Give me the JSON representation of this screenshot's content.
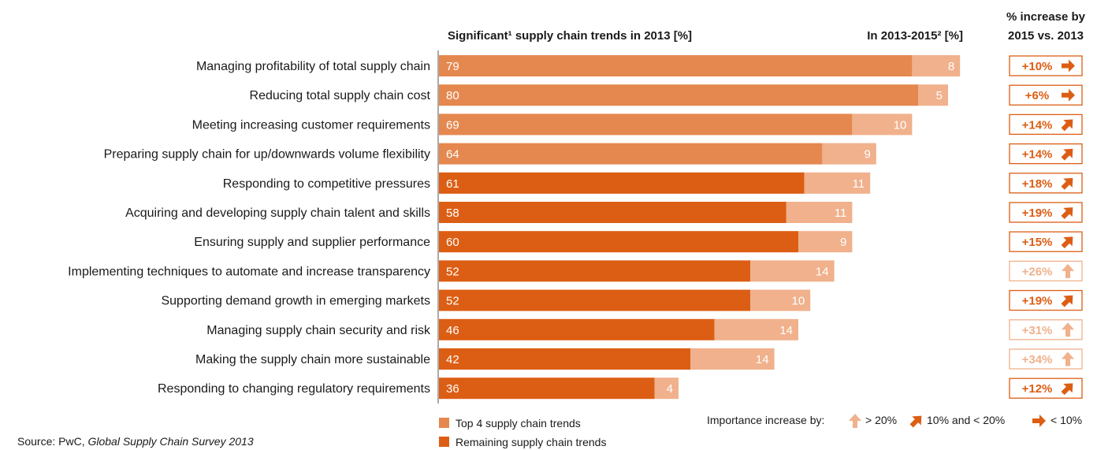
{
  "chart_data": {
    "type": "bar",
    "title": "Significant¹ supply chain trends in 2013 [%]",
    "increase_header": "In 2013-2015² [%]",
    "pct_header_line1": "% increase by",
    "pct_header_line2": "2015 vs. 2013",
    "categories": [
      "Managing profitability of total supply chain",
      "Reducing total supply chain cost",
      "Meeting increasing customer requirements",
      "Preparing supply chain for up/downwards volume flexibility",
      "Responding to competitive pressures",
      "Acquiring and developing supply chain talent and skills",
      "Ensuring supply and supplier performance",
      "Implementing techniques to automate and increase transparency",
      "Supporting demand growth in emerging markets",
      "Managing supply chain security and risk",
      "Making the supply chain more sustainable",
      "Responding to changing regulatory requirements"
    ],
    "series": [
      {
        "name": "Top 4 supply chain trends / Remaining supply chain trends",
        "values": [
          79,
          80,
          69,
          64,
          61,
          58,
          60,
          52,
          52,
          46,
          42,
          36
        ]
      },
      {
        "name": "In 2013-2015",
        "values": [
          8,
          5,
          10,
          9,
          11,
          11,
          9,
          14,
          10,
          14,
          14,
          4
        ]
      }
    ],
    "top4": [
      true,
      true,
      true,
      true,
      false,
      false,
      false,
      false,
      false,
      false,
      false,
      false
    ],
    "pct_increase": [
      "+10%",
      "+6%",
      "+14%",
      "+14%",
      "+18%",
      "+19%",
      "+15%",
      "+26%",
      "+19%",
      "+31%",
      "+34%",
      "+12%"
    ],
    "pct_arrow": [
      "right",
      "right",
      "diag",
      "diag",
      "diag",
      "diag",
      "diag",
      "up",
      "diag",
      "up",
      "up",
      "diag"
    ],
    "legend": {
      "top4_label": "Top 4 supply chain trends",
      "remaining_label": "Remaining supply chain trends",
      "importance_prefix": "Importance increase by:",
      "up_label": "> 20%",
      "diag_label": "10% and < 20%",
      "right_label": "< 10%"
    },
    "source_prefix": "Source: PwC, ",
    "source_title": "Global Supply Chain Survey 2013",
    "colors": {
      "top4": "#E5884F",
      "remaining": "#DC5E14",
      "increase": "#F0B18C",
      "arrow_strong": "#DC5E14",
      "arrow_light": "#F0B18C"
    }
  }
}
